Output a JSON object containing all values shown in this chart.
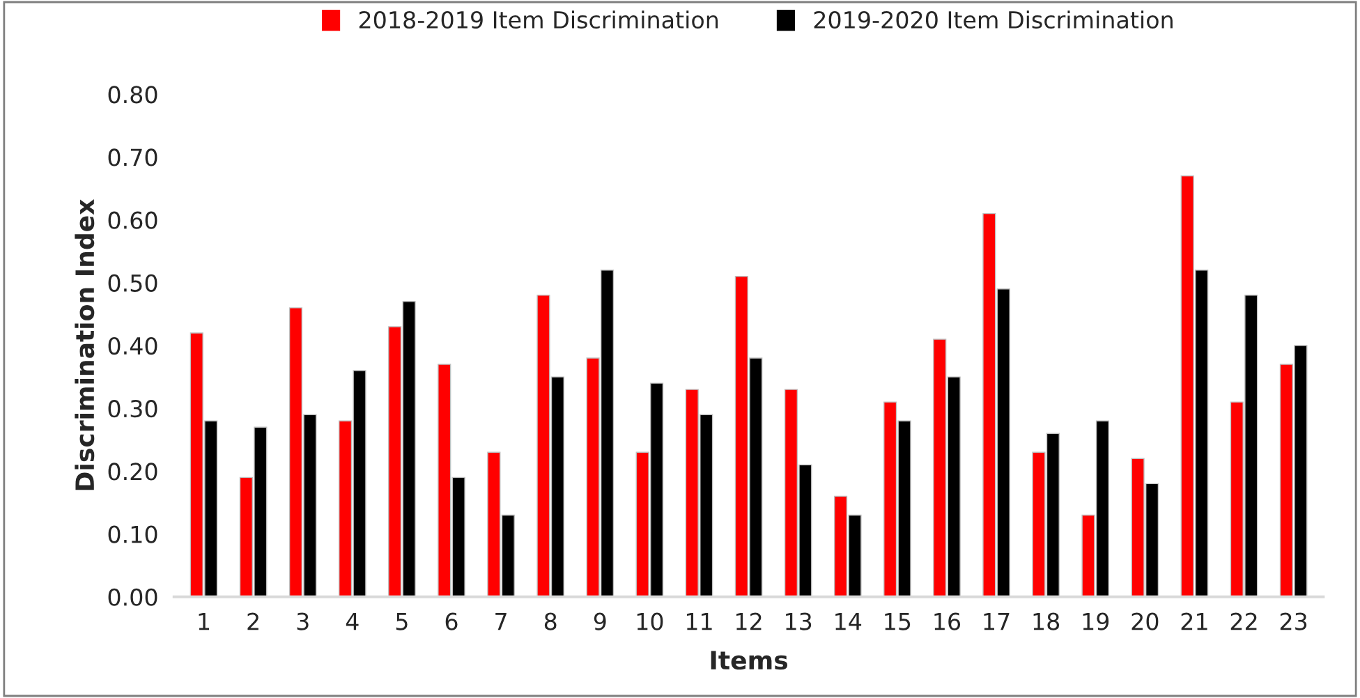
{
  "chart_data": {
    "type": "bar",
    "xlabel": "Items",
    "ylabel": "Discrimination Index",
    "categories": [
      "1",
      "2",
      "3",
      "4",
      "5",
      "6",
      "7",
      "8",
      "9",
      "10",
      "11",
      "12",
      "13",
      "14",
      "15",
      "16",
      "17",
      "18",
      "19",
      "20",
      "21",
      "22",
      "23"
    ],
    "series": [
      {
        "name": "2018-2019 Item Discrimination",
        "color": "#ff0000",
        "values": [
          0.42,
          0.19,
          0.46,
          0.28,
          0.43,
          0.37,
          0.23,
          0.48,
          0.38,
          0.23,
          0.33,
          0.51,
          0.33,
          0.16,
          0.31,
          0.41,
          0.61,
          0.23,
          0.13,
          0.22,
          0.67,
          0.31,
          0.37
        ]
      },
      {
        "name": "2019-2020 Item Discrimination",
        "color": "#000000",
        "values": [
          0.28,
          0.27,
          0.29,
          0.36,
          0.47,
          0.19,
          0.13,
          0.35,
          0.52,
          0.34,
          0.29,
          0.38,
          0.21,
          0.13,
          0.28,
          0.35,
          0.49,
          0.26,
          0.28,
          0.18,
          0.52,
          0.48,
          0.4
        ]
      }
    ],
    "ylim": [
      0,
      0.8
    ],
    "yticks": [
      {
        "value": 0,
        "label": "0.00"
      },
      {
        "value": 0.1,
        "label": "0.10"
      },
      {
        "value": 0.2,
        "label": "0.20"
      },
      {
        "value": 0.3,
        "label": "0.30"
      },
      {
        "value": 0.4,
        "label": "0.40"
      },
      {
        "value": 0.5,
        "label": "0.50"
      },
      {
        "value": 0.6,
        "label": "0.60"
      },
      {
        "value": 0.7,
        "label": "0.70"
      },
      {
        "value": 0.8,
        "label": "0.80"
      }
    ],
    "grid": false,
    "legend": "top"
  }
}
